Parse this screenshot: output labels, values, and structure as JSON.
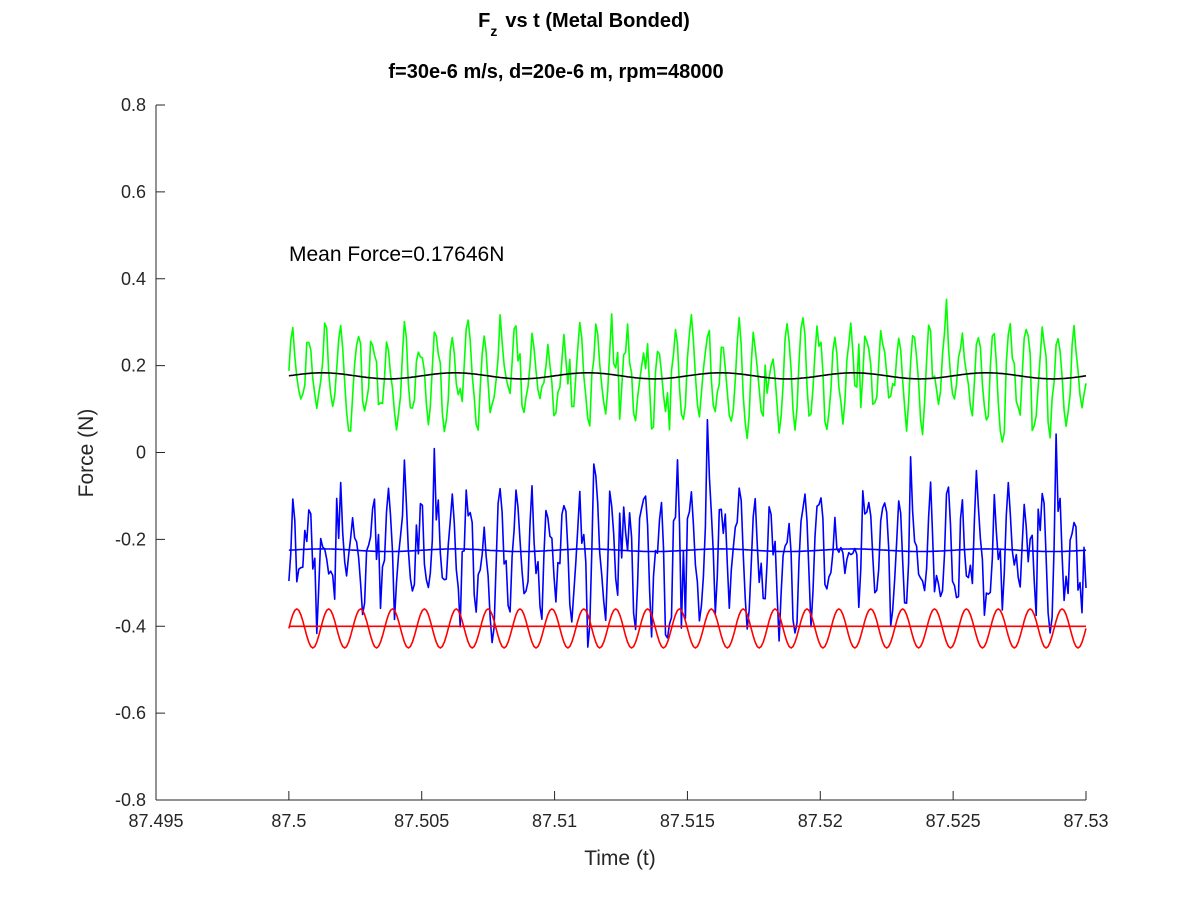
{
  "chart_data": {
    "type": "line",
    "title_main": "F",
    "title_subscript": "z",
    "title_rest": "vs t (Metal Bonded)",
    "subtitle": "f=30e-6 m/s, d=20e-6 m, rpm=48000",
    "xlabel": "Time (t)",
    "ylabel": "Force (N)",
    "xlim": [
      87.495,
      87.53
    ],
    "ylim": [
      -0.8,
      0.8
    ],
    "xticks": [
      87.495,
      87.5,
      87.505,
      87.51,
      87.515,
      87.52,
      87.525,
      87.53
    ],
    "xtick_labels": [
      "87.495",
      "87.5",
      "87.505",
      "87.51",
      "87.515",
      "87.52",
      "87.525",
      "87.53"
    ],
    "yticks": [
      0.8,
      0.6,
      0.4,
      0.2,
      0,
      -0.2,
      -0.4,
      -0.6,
      -0.8
    ],
    "ytick_labels": [
      "0.8",
      "0.6",
      "0.4",
      "0.2",
      "0",
      "-0.2",
      "-0.4",
      "-0.6",
      "-0.8"
    ],
    "grid": false,
    "annotation": "Mean Force=0.17646N",
    "colors": {
      "green": "#00ff00",
      "blue": "#0000ff",
      "red": "#ff0000",
      "black": "#000000"
    },
    "series": [
      {
        "color": "green",
        "t_range": [
          87.5,
          87.53
        ],
        "mean": 0.175,
        "periodic": {
          "period": 0.0006,
          "amplitude": 0.09
        },
        "noise_amplitude": 0.07,
        "approx_range": [
          -0.05,
          0.46
        ]
      },
      {
        "color": "black",
        "t_range": [
          87.5,
          87.53
        ],
        "mean": 0.1765,
        "periodic": {
          "period": 0.005,
          "amplitude": 0.007
        }
      },
      {
        "color": "blue",
        "t_range": [
          87.5,
          87.53
        ],
        "mean": -0.23,
        "periodic": {
          "period": 0.0006,
          "amplitude": 0.1
        },
        "noise_amplitude": 0.12,
        "approx_range": [
          -0.47,
          0.12
        ]
      },
      {
        "color": "blue",
        "t_range": [
          87.5,
          87.53
        ],
        "mean": -0.225,
        "periodic": {
          "period": 0.005,
          "amplitude": 0.003
        }
      },
      {
        "color": "red",
        "t_range": [
          87.5,
          87.53
        ],
        "mean": -0.405,
        "periodic": {
          "period": 0.0012,
          "amplitude": 0.045
        },
        "approx_range": [
          -0.45,
          -0.36
        ]
      },
      {
        "color": "red",
        "t_range": [
          87.5,
          87.53
        ],
        "mean": -0.4,
        "periodic": {
          "period": 0.005,
          "amplitude": 0.0
        }
      }
    ]
  }
}
